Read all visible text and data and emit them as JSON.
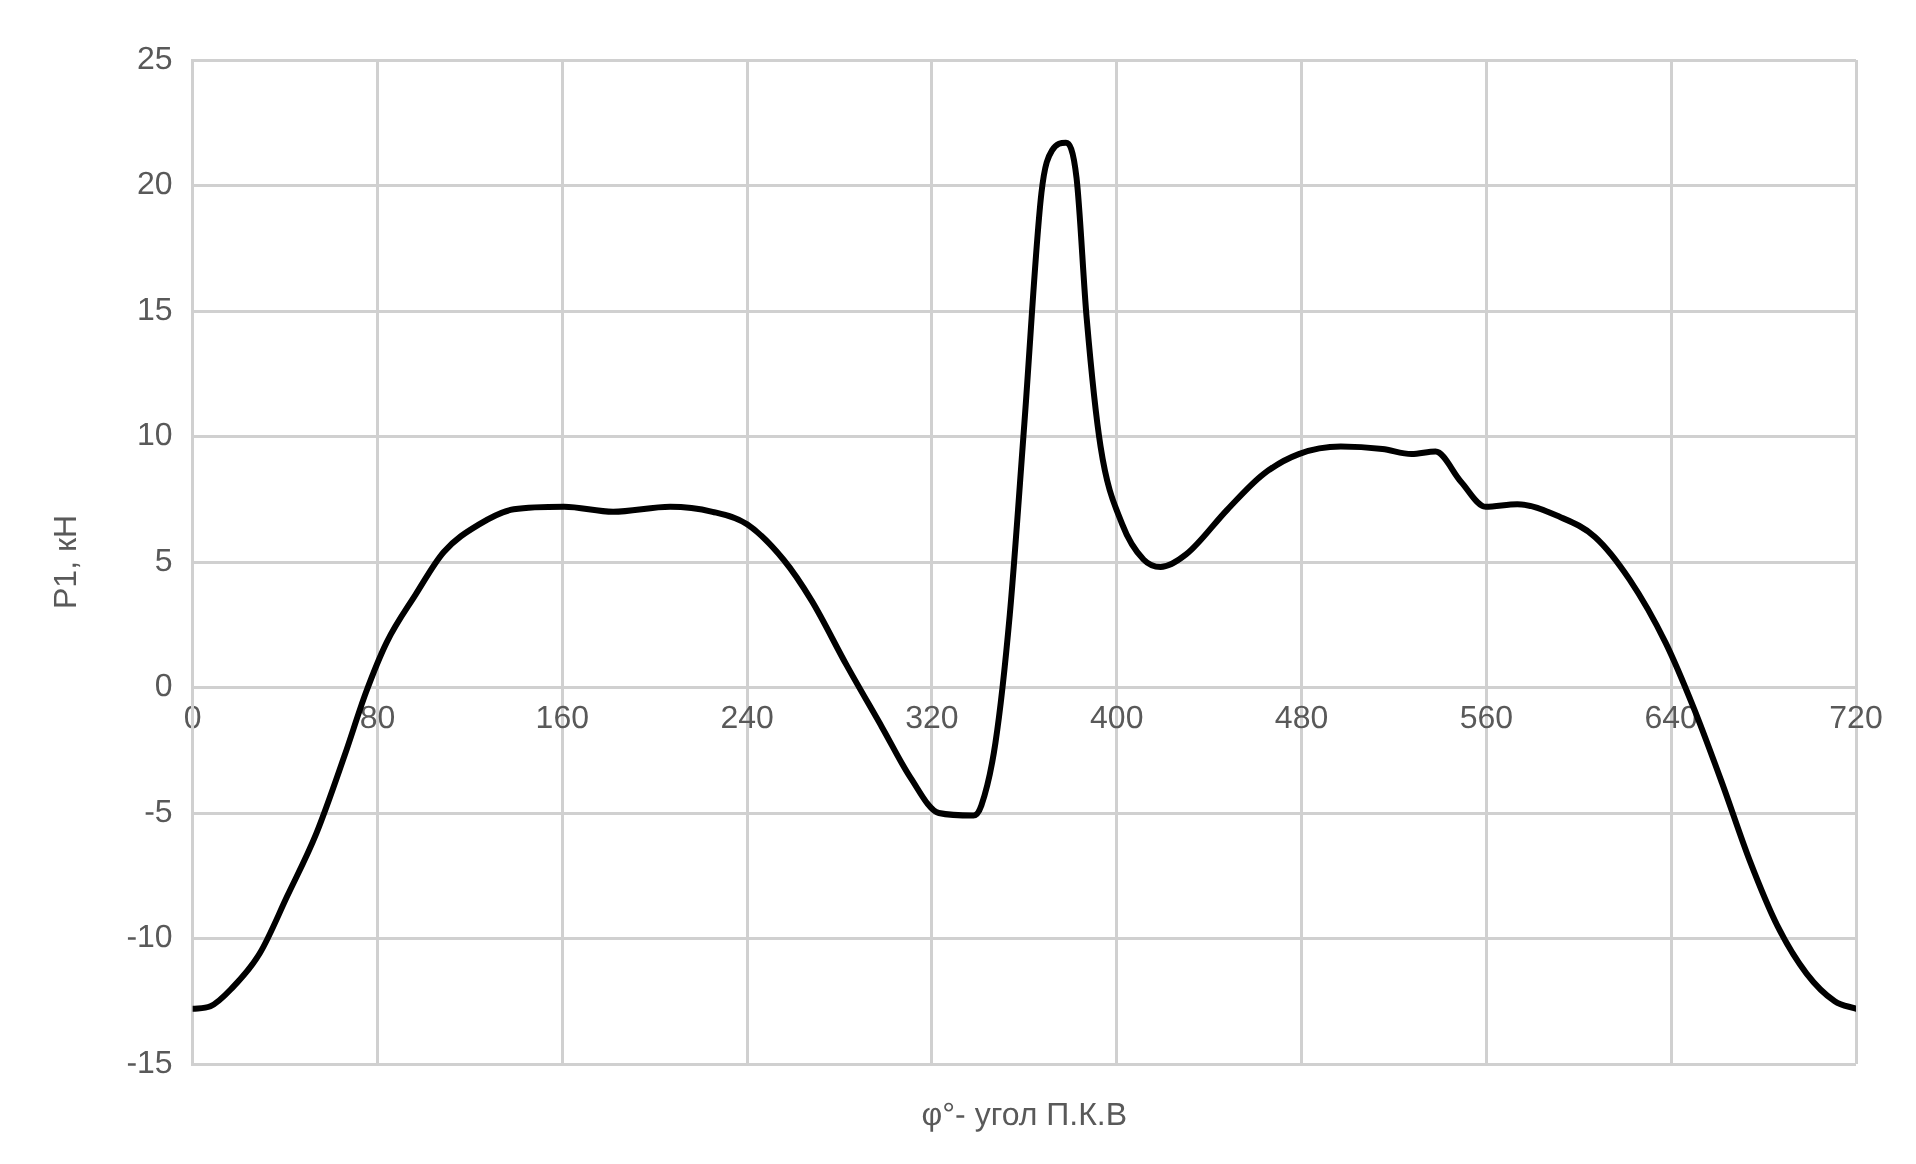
{
  "chart_data": {
    "type": "line",
    "xlabel": "φ°- угол П.К.В",
    "ylabel": "P1, кН",
    "series": [
      {
        "color": "#000000",
        "x": [
          0,
          7.7,
          16.8,
          29,
          41,
          53.6,
          65.8,
          75,
          84,
          96.5,
          108.7,
          124,
          139,
          160.8,
          182,
          206.7,
          225,
          240,
          255.7,
          268,
          283,
          298.5,
          310.8,
          323,
          338,
          341.4,
          347.5,
          353.7,
          360,
          367.4,
          372,
          378,
          382.6,
          387,
          393,
          402.4,
          411.6,
          419,
          430,
          448,
          463.5,
          478.8,
          497,
          515,
          527.6,
          538,
          549,
          559.7,
          573.4,
          591.7,
          607,
          622,
          637.5,
          649.7,
          662,
          674,
          686,
          698.6,
          710.8,
          720
        ],
        "values": [
          -12.8,
          -12.7,
          -12,
          -10.6,
          -8.3,
          -5.8,
          -2.7,
          -0.2,
          1.8,
          3.7,
          5.4,
          6.5,
          7.1,
          7.2,
          7,
          7.2,
          7,
          6.5,
          5.1,
          3.45,
          0.9,
          -1.6,
          -3.6,
          -5,
          -5.1,
          -4.7,
          -2.2,
          2.9,
          10.5,
          19.7,
          21.4,
          21.7,
          20.3,
          14.7,
          9.6,
          6.5,
          5.1,
          4.8,
          5.3,
          7.1,
          8.5,
          9.3,
          9.6,
          9.5,
          9.3,
          9.4,
          8.2,
          7.2,
          7.3,
          6.8,
          6,
          4.3,
          1.8,
          -0.8,
          -3.8,
          -6.9,
          -9.5,
          -11.4,
          -12.5,
          -12.8
        ]
      }
    ],
    "xlim": [
      0,
      720
    ],
    "xticks": [
      0,
      80,
      160,
      240,
      320,
      400,
      480,
      560,
      640,
      720
    ],
    "ylim": [
      -15,
      25
    ],
    "yticks": [
      -15,
      -10,
      -5,
      0,
      5,
      10,
      15,
      20,
      25
    ],
    "grid": true,
    "legend": false,
    "marker": "none",
    "line_style": "solid"
  }
}
